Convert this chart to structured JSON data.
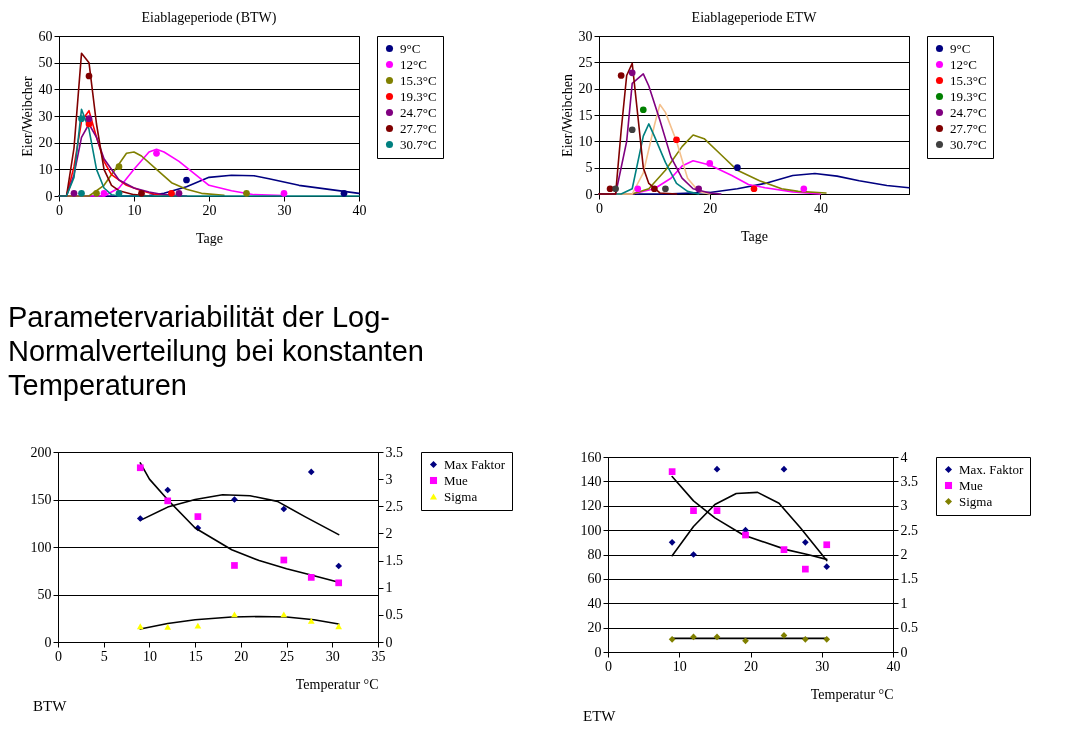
{
  "chart_data": [
    {
      "type": "line",
      "title": "Eiablageperiode (BTW)",
      "xlabel": "Tage",
      "ylabel": "Eier/Weibcher",
      "xlim": [
        0,
        40
      ],
      "xticks": [
        0,
        10,
        20,
        30,
        40
      ],
      "ylim": [
        0,
        60
      ],
      "yticks": [
        0,
        10,
        20,
        30,
        40,
        50,
        60
      ],
      "grid": "y",
      "legend": "right",
      "series": [
        {
          "type": "line",
          "color": "#000080",
          "x": [
            0,
            10,
            12,
            14,
            17,
            20,
            23,
            26,
            28,
            32,
            36,
            40
          ],
          "values": [
            0,
            0,
            0.2,
            1,
            3.5,
            7,
            7.8,
            7.6,
            6.5,
            4,
            2.5,
            1
          ]
        },
        {
          "type": "line",
          "color": "#ff00ff",
          "x": [
            0,
            6,
            8,
            10,
            12,
            13,
            14,
            16,
            18,
            20,
            23,
            26,
            30
          ],
          "values": [
            0,
            0,
            3,
            10,
            16.5,
            17.5,
            16.5,
            13,
            8.5,
            4,
            2,
            0.5,
            0.2
          ]
        },
        {
          "type": "line",
          "color": "#808000",
          "x": [
            0,
            4,
            6,
            8,
            9,
            10,
            11,
            13,
            15,
            17,
            19,
            22
          ],
          "values": [
            0,
            0,
            4,
            12,
            16,
            16.5,
            15,
            10,
            5,
            2.5,
            1,
            0.3
          ]
        },
        {
          "type": "line",
          "color": "#ff0000",
          "x": [
            0,
            1,
            2,
            3,
            4,
            5,
            6,
            7,
            9,
            11,
            13,
            16
          ],
          "values": [
            0,
            0,
            11,
            28,
            32,
            22,
            13,
            8,
            4,
            2,
            0.5,
            0.1
          ]
        },
        {
          "type": "line",
          "color": "#800080",
          "x": [
            0,
            1,
            2,
            3,
            4,
            5,
            6,
            8,
            10,
            12,
            14,
            17
          ],
          "values": [
            0,
            0,
            8,
            22,
            27,
            22,
            14,
            6,
            3,
            1.5,
            0.5,
            0
          ]
        },
        {
          "type": "line",
          "color": "#800000",
          "x": [
            0,
            1,
            2,
            3,
            4,
            5,
            6,
            7,
            8,
            10,
            12
          ],
          "values": [
            0,
            0,
            18,
            53.5,
            50,
            27,
            10,
            4,
            2,
            0.5,
            0
          ]
        },
        {
          "type": "line",
          "color": "#008080",
          "x": [
            0,
            1,
            2,
            3,
            4,
            5,
            6,
            7,
            8,
            40
          ],
          "values": [
            0,
            0,
            7,
            32.5,
            25,
            10,
            3,
            0.5,
            0,
            0
          ]
        },
        {
          "type": "scatter",
          "marker": "circle",
          "name": "9°C",
          "color": "#000080",
          "x": [
            17,
            38
          ],
          "values": [
            6,
            1
          ]
        },
        {
          "type": "scatter",
          "marker": "circle",
          "name": "12°C",
          "color": "#ff00ff",
          "x": [
            6,
            13,
            30
          ],
          "values": [
            1,
            16,
            1
          ]
        },
        {
          "type": "scatter",
          "marker": "circle",
          "name": "15.3°C",
          "color": "#808000",
          "x": [
            5,
            8,
            25
          ],
          "values": [
            1,
            11,
            1
          ]
        },
        {
          "type": "scatter",
          "marker": "circle",
          "name": "19.3°C",
          "color": "#ff0000",
          "x": [
            4,
            15
          ],
          "values": [
            27,
            1
          ]
        },
        {
          "type": "scatter",
          "marker": "circle",
          "name": "24.7°C",
          "color": "#800080",
          "x": [
            2,
            4,
            16
          ],
          "values": [
            1,
            29,
            1
          ]
        },
        {
          "type": "scatter",
          "marker": "circle",
          "name": "27.7°C",
          "color": "#800000",
          "x": [
            4,
            11
          ],
          "values": [
            45,
            1
          ]
        },
        {
          "type": "scatter",
          "marker": "circle",
          "name": "30.7°C",
          "color": "#008080",
          "x": [
            3,
            3,
            8
          ],
          "values": [
            1,
            29,
            1
          ]
        }
      ]
    },
    {
      "type": "line",
      "title": "Eiablageperiode ETW",
      "xlabel": "Tage",
      "ylabel": "Eier/Weibchen",
      "xlim": [
        0,
        56
      ],
      "xticks": [
        0,
        20,
        40
      ],
      "ylim": [
        0,
        30
      ],
      "yticks": [
        0,
        5,
        10,
        15,
        20,
        25,
        30
      ],
      "grid": "y",
      "legend": "right",
      "series": [
        {
          "type": "line",
          "color": "#000080",
          "x": [
            0,
            12,
            20,
            25,
            30,
            35,
            39,
            43,
            47,
            52,
            56
          ],
          "values": [
            0,
            0,
            0.3,
            1,
            2,
            3.5,
            3.9,
            3.4,
            2.5,
            1.6,
            1.2
          ]
        },
        {
          "type": "line",
          "color": "#ff00ff",
          "x": [
            0,
            6,
            10,
            13,
            15,
            17,
            20,
            24,
            27,
            30,
            35,
            40
          ],
          "values": [
            0,
            0,
            1,
            3,
            5.3,
            6.3,
            5.5,
            3.5,
            1.8,
            1.2,
            0.4,
            0
          ]
        },
        {
          "type": "line",
          "color": "#808000",
          "x": [
            0,
            6,
            9,
            12,
            15,
            17,
            19,
            22,
            25,
            29,
            33,
            36,
            41
          ],
          "values": [
            0,
            0,
            1,
            4.5,
            9,
            11.2,
            10.5,
            7.5,
            4.5,
            2.5,
            1,
            0.5,
            0.2
          ]
        },
        {
          "type": "line",
          "color": "#f4c08c",
          "x": [
            0,
            6,
            8,
            10,
            11,
            12,
            14,
            16,
            18,
            20
          ],
          "values": [
            0,
            0,
            4,
            13,
            17,
            15.5,
            10,
            3,
            0.5,
            0
          ]
        },
        {
          "type": "line",
          "color": "#008080",
          "x": [
            0,
            4,
            6,
            8,
            9,
            10,
            12,
            14,
            16,
            18
          ],
          "values": [
            0,
            0,
            1,
            11,
            13.3,
            11,
            6,
            2,
            0.5,
            0
          ]
        },
        {
          "type": "line",
          "color": "#800080",
          "x": [
            0,
            3,
            5,
            6,
            8,
            9,
            11,
            13,
            15,
            17,
            20,
            22
          ],
          "values": [
            0,
            0,
            10,
            21,
            22.8,
            20.5,
            14,
            7,
            3,
            1,
            0.2,
            0
          ]
        },
        {
          "type": "line",
          "color": "#800000",
          "x": [
            0,
            3,
            4,
            5,
            6,
            7,
            8,
            9,
            11,
            14
          ],
          "values": [
            0,
            0,
            12,
            22.5,
            24.8,
            15,
            5,
            2,
            0.2,
            0
          ]
        },
        {
          "type": "scatter",
          "marker": "circle",
          "name": "9°C",
          "color": "#000080",
          "x": [
            25
          ],
          "values": [
            5
          ]
        },
        {
          "type": "scatter",
          "marker": "circle",
          "name": "12°C",
          "color": "#ff00ff",
          "x": [
            7,
            20,
            37
          ],
          "values": [
            1,
            5.8,
            1
          ]
        },
        {
          "type": "scatter",
          "marker": "circle",
          "name": "15.3°C",
          "color": "#ff0000",
          "x": [
            14,
            28
          ],
          "values": [
            10.3,
            1
          ]
        },
        {
          "type": "scatter",
          "marker": "circle",
          "name": "19.3°C",
          "color": "#008000",
          "x": [
            8
          ],
          "values": [
            16
          ]
        },
        {
          "type": "scatter",
          "marker": "circle",
          "name": "24.7°C",
          "color": "#800080",
          "x": [
            6,
            18
          ],
          "values": [
            23,
            1
          ]
        },
        {
          "type": "scatter",
          "marker": "circle",
          "name": "27.7°C",
          "color": "#800000",
          "x": [
            2,
            4,
            10
          ],
          "values": [
            1,
            22.5,
            1
          ]
        },
        {
          "type": "scatter",
          "marker": "circle",
          "name": "30.7°C",
          "color": "#404040",
          "x": [
            3,
            6,
            12
          ],
          "values": [
            1,
            12.2,
            1
          ]
        }
      ]
    },
    {
      "type": "other",
      "title": "Parametervariabilität der Log-Normalverteilung bei konstanten Temperaturen"
    },
    {
      "type": "scatter",
      "xlabel": "Temperatur °C",
      "xlim": [
        0,
        35
      ],
      "xticks": [
        0,
        5,
        10,
        15,
        20,
        25,
        30,
        35
      ],
      "ylim": [
        0,
        200
      ],
      "yticks": [
        0,
        50,
        100,
        150,
        200
      ],
      "y2lim": [
        0,
        3.5
      ],
      "y2ticks": [
        0,
        0.5,
        1,
        1.5,
        2,
        2.5,
        3,
        3.5
      ],
      "grid": "y",
      "legend": "right",
      "annotations": [
        "BTW"
      ],
      "x": [
        9,
        12,
        15.3,
        19.3,
        24.7,
        27.7,
        30.7
      ],
      "series": [
        {
          "name": "Max Faktor",
          "color": "#000080",
          "marker": "diamond",
          "values": [
            130,
            160,
            120,
            150,
            140,
            179,
            80
          ]
        },
        {
          "name": "Mue",
          "color": "#ff00ff",
          "marker": "square",
          "axis": "y2",
          "values": [
            3.21,
            2.6,
            2.31,
            1.41,
            1.51,
            1.19,
            1.09
          ]
        },
        {
          "name": "Sigma",
          "color": "#ffff00",
          "marker": "triangle",
          "axis": "y2",
          "values": [
            0.29,
            0.28,
            0.3,
            0.51,
            0.51,
            0.39,
            0.29
          ]
        },
        {
          "type": "line",
          "color": "#000000",
          "x": [
            9,
            12,
            15,
            18,
            21,
            24,
            27,
            30.7
          ],
          "values": [
            128,
            142,
            150,
            155,
            154,
            148,
            132,
            113
          ]
        },
        {
          "type": "line",
          "color": "#000000",
          "axis": "y2",
          "x": [
            9,
            10,
            12,
            15,
            19,
            22,
            25,
            28,
            30.7
          ],
          "values": [
            3.3,
            3,
            2.62,
            2.1,
            1.7,
            1.5,
            1.35,
            1.22,
            1.1
          ]
        },
        {
          "type": "line",
          "color": "#000000",
          "axis": "y2",
          "x": [
            9,
            12,
            15,
            19,
            22,
            25,
            28,
            30.7
          ],
          "values": [
            0.24,
            0.34,
            0.41,
            0.46,
            0.47,
            0.46,
            0.41,
            0.33
          ]
        }
      ]
    },
    {
      "type": "scatter",
      "xlabel": "Temperatur °C",
      "xlim": [
        0,
        40
      ],
      "xticks": [
        0,
        10,
        20,
        30,
        40
      ],
      "ylim": [
        0,
        160
      ],
      "yticks": [
        0,
        20,
        40,
        60,
        80,
        100,
        120,
        140,
        160
      ],
      "y2lim": [
        0,
        4
      ],
      "y2ticks": [
        0,
        0.5,
        1,
        1.5,
        2,
        2.5,
        3,
        3.5,
        4
      ],
      "grid": "y",
      "legend": "right",
      "annotations": [
        "ETW"
      ],
      "x": [
        9,
        12,
        15.3,
        19.3,
        24.7,
        27.7,
        30.7
      ],
      "series": [
        {
          "name": "Max. Faktor",
          "color": "#000080",
          "marker": "diamond",
          "values": [
            90,
            80,
            150,
            100,
            150,
            90,
            70
          ]
        },
        {
          "name": "Mue",
          "color": "#ff00ff",
          "marker": "square",
          "axis": "y2",
          "values": [
            3.7,
            2.9,
            2.9,
            2.4,
            2.1,
            1.7,
            2.2
          ]
        },
        {
          "name": "Sigma",
          "color": "#808000",
          "marker": "diamond",
          "axis": "y2",
          "values": [
            0.26,
            0.31,
            0.31,
            0.23,
            0.34,
            0.26,
            0.26
          ]
        },
        {
          "type": "line",
          "color": "#000000",
          "x": [
            9,
            12,
            15,
            18,
            21,
            24,
            27,
            30.7
          ],
          "values": [
            79,
            103,
            121,
            130,
            131,
            122,
            102,
            75
          ]
        },
        {
          "type": "line",
          "color": "#000000",
          "axis": "y2",
          "x": [
            9,
            12,
            15,
            19,
            22,
            25,
            28,
            30.7
          ],
          "values": [
            3.6,
            3.1,
            2.75,
            2.4,
            2.25,
            2.1,
            2,
            1.9
          ]
        },
        {
          "type": "line",
          "color": "#000000",
          "axis": "y2",
          "x": [
            9,
            30.7
          ],
          "values": [
            0.28,
            0.28
          ]
        }
      ]
    }
  ]
}
